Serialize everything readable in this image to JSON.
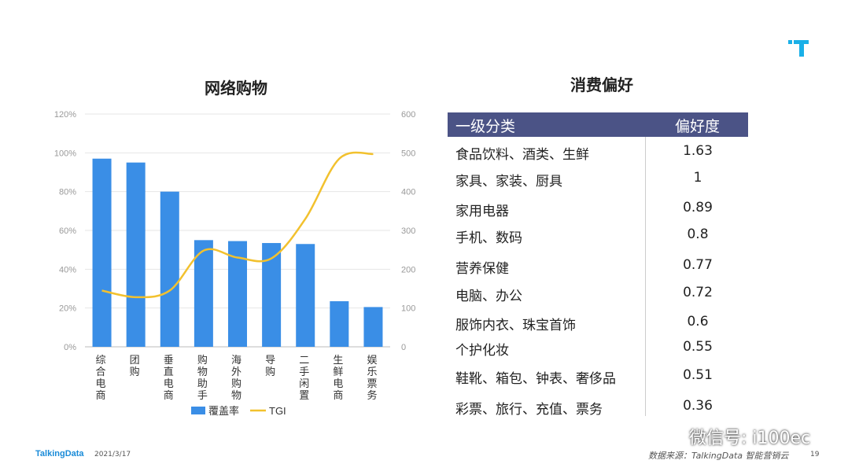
{
  "slide": {
    "footer_brand": "TalkingData",
    "date": "2021/3/17",
    "source": "数据来源：TalkingData 智能营销云",
    "page_number": "19",
    "watermark": "微信号: i100ec",
    "colors": {
      "accent": "#1ab0e8",
      "header_bg": "#4b5386",
      "bar": "#3a8ee6",
      "line": "#f2c12e"
    }
  },
  "chart_data": {
    "type": "bar",
    "title": "网络购物",
    "categories": [
      "综合电商",
      "团购",
      "垂直电商",
      "购物助手",
      "海外购物",
      "导购",
      "二手闲置",
      "生鲜电商",
      "娱乐票务"
    ],
    "series": [
      {
        "name": "覆盖率",
        "type": "bar",
        "axis": "left",
        "values": [
          97,
          95,
          80,
          55,
          54.5,
          53.5,
          53,
          23.5,
          20.5
        ]
      },
      {
        "name": "TGI",
        "type": "line",
        "axis": "right",
        "values": [
          145,
          128,
          145,
          248,
          230,
          228,
          330,
          485,
          497
        ]
      }
    ],
    "y_left": {
      "ylim": [
        0,
        120
      ],
      "ticks": [
        "0%",
        "20%",
        "40%",
        "60%",
        "80%",
        "100%",
        "120%"
      ]
    },
    "y_right": {
      "ylim": [
        0,
        600
      ],
      "ticks": [
        "0",
        "100",
        "200",
        "300",
        "400",
        "500",
        "600"
      ]
    },
    "legend": {
      "placement": "bottom",
      "bar_label": "覆盖率",
      "line_label": "TGI"
    },
    "grid": true
  },
  "preference": {
    "title": "消费偏好",
    "headers": [
      "一级分类",
      "偏好度"
    ],
    "rows": [
      {
        "category": "食品饮料、酒类、生鲜",
        "value": "1.63"
      },
      {
        "category": "家具、家装、厨具",
        "value": "1"
      },
      {
        "category": "家用电器",
        "value": "0.89"
      },
      {
        "category": "手机、数码",
        "value": "0.8"
      },
      {
        "category": "营养保健",
        "value": "0.77"
      },
      {
        "category": "电脑、办公",
        "value": "0.72"
      },
      {
        "category": "服饰内衣、珠宝首饰",
        "value": "0.6"
      },
      {
        "category": "个护化妆",
        "value": "0.55"
      },
      {
        "category": "鞋靴、箱包、钟表、奢侈品",
        "value": "0.51"
      },
      {
        "category": "彩票、旅行、充值、票务",
        "value": "0.36"
      }
    ]
  }
}
